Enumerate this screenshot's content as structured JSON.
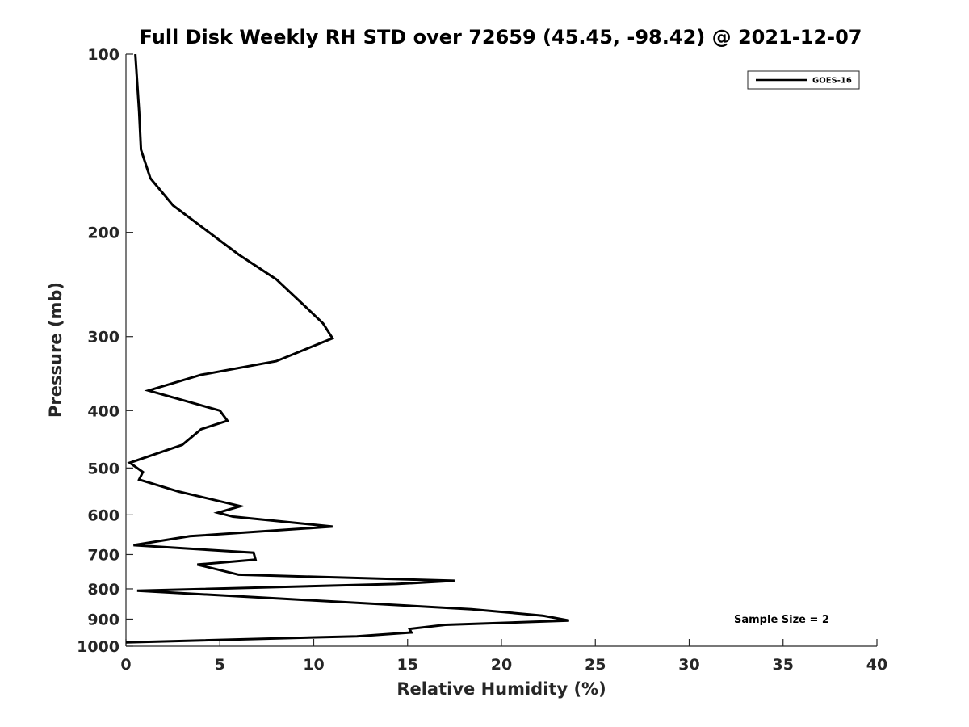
{
  "chart_data": {
    "type": "line",
    "title": "Full Disk Weekly RH STD over 72659 (45.45, -98.42) @ 2021-12-07",
    "xlabel": "Relative Humidity (%)",
    "ylabel": "Pressure (mb)",
    "xlim": [
      0,
      40
    ],
    "ylim": [
      100,
      1000
    ],
    "yscale": "log",
    "y_reversed": true,
    "x_ticks": [
      0,
      5,
      10,
      15,
      20,
      25,
      30,
      35,
      40
    ],
    "y_ticks": [
      100,
      200,
      300,
      400,
      500,
      600,
      700,
      800,
      900,
      1000
    ],
    "legend_position": "top-right",
    "series": [
      {
        "name": "GOES-16",
        "color": "#000000",
        "x": [
          0.5,
          0.7,
          0.8,
          1.3,
          2.5,
          6.0,
          8.0,
          9.5,
          10.5,
          11.0,
          8.0,
          4.0,
          1.2,
          5.0,
          5.4,
          4.0,
          3.0,
          0.2,
          0.9,
          0.7,
          2.8,
          6.1,
          4.9,
          5.7,
          11.0,
          3.4,
          0.4,
          6.8,
          6.9,
          3.8,
          6.0,
          17.5,
          14.4,
          0.6,
          8.3,
          18.4,
          22.2,
          23.6,
          17.0,
          15.1,
          15.2,
          12.3,
          0.0
        ],
        "y": [
          100,
          125,
          145,
          162,
          180,
          218,
          240,
          266,
          285,
          302,
          330,
          348,
          370,
          400,
          416,
          430,
          457,
          490,
          508,
          523,
          548,
          580,
          595,
          604,
          628,
          652,
          675,
          695,
          714,
          728,
          757,
          775,
          785,
          806,
          831,
          866,
          888,
          905,
          920,
          935,
          948,
          962,
          985
        ]
      }
    ],
    "annotation": "Sample Size = 2"
  }
}
